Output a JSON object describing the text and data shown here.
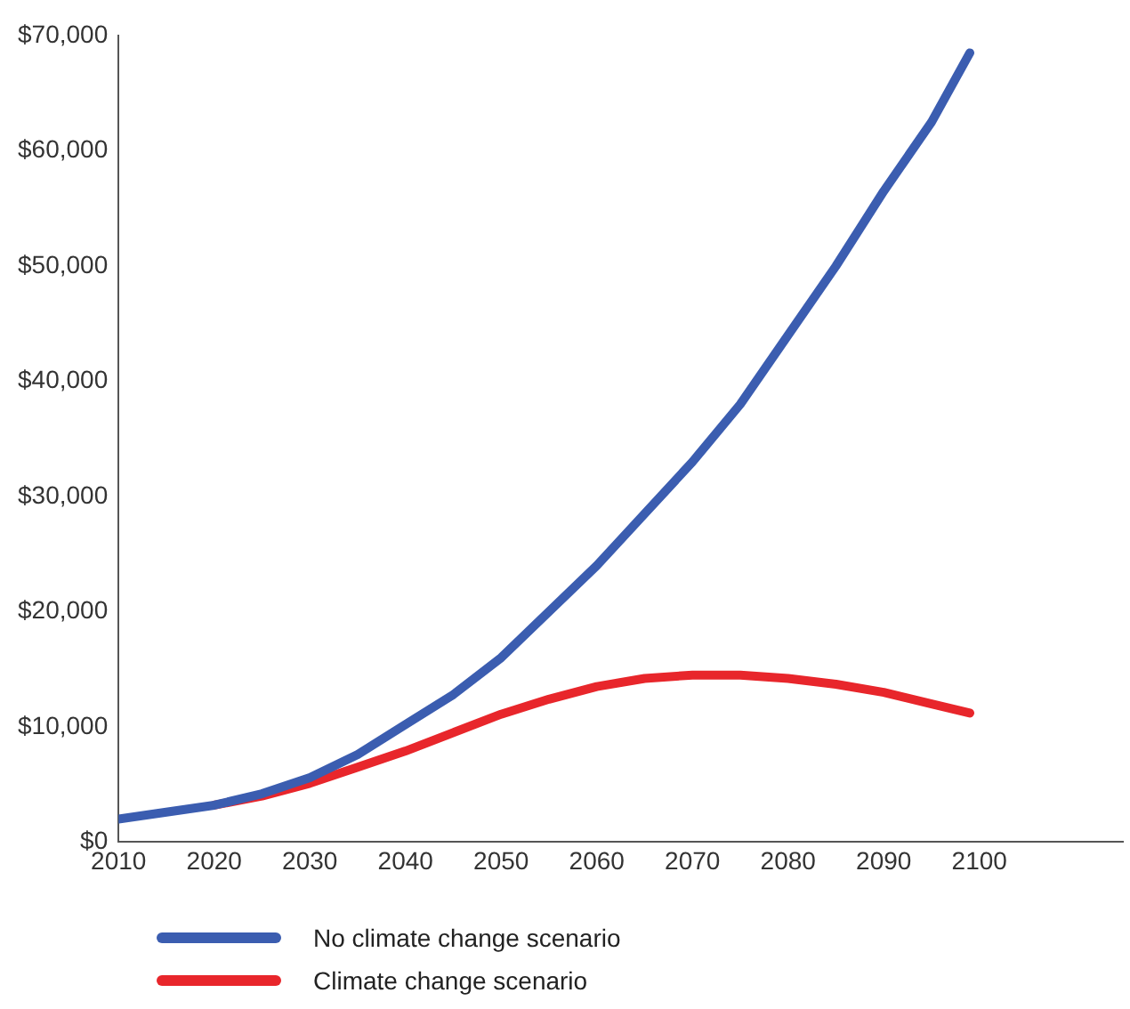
{
  "chart_data": {
    "type": "line",
    "xlim": [
      2010,
      2115
    ],
    "xticks": [
      2010,
      2020,
      2030,
      2040,
      2050,
      2060,
      2070,
      2080,
      2090,
      2100
    ],
    "ylim": [
      0,
      70000
    ],
    "yticks": [
      {
        "value": 0,
        "label": "$0"
      },
      {
        "value": 10000,
        "label": "$10,000"
      },
      {
        "value": 20000,
        "label": "$20,000"
      },
      {
        "value": 30000,
        "label": "$30,000"
      },
      {
        "value": 40000,
        "label": "$40,000"
      },
      {
        "value": 50000,
        "label": "$50,000"
      },
      {
        "value": 60000,
        "label": "$60,000"
      },
      {
        "value": 70000,
        "label": "$70,000"
      }
    ],
    "grid": false,
    "legend": "bottom",
    "marker": "none",
    "line_style": "solid",
    "series": [
      {
        "name": "No climate change scenario",
        "color": "#3b5db0",
        "x": [
          2010,
          2015,
          2020,
          2025,
          2030,
          2035,
          2040,
          2045,
          2050,
          2055,
          2060,
          2065,
          2070,
          2075,
          2080,
          2085,
          2090,
          2095,
          2099
        ],
        "values": [
          2000,
          2600,
          3200,
          4200,
          5600,
          7600,
          10200,
          12800,
          16000,
          20000,
          24000,
          28500,
          33000,
          38000,
          44000,
          50000,
          56500,
          62500,
          68500
        ]
      },
      {
        "name": "Climate change scenario",
        "color": "#e8262b",
        "x": [
          2020,
          2025,
          2030,
          2035,
          2040,
          2045,
          2050,
          2055,
          2060,
          2065,
          2070,
          2075,
          2080,
          2085,
          2090,
          2095,
          2099
        ],
        "values": [
          3200,
          4000,
          5100,
          6500,
          7900,
          9500,
          11100,
          12400,
          13500,
          14200,
          14500,
          14500,
          14200,
          13700,
          13000,
          12000,
          11200
        ]
      }
    ]
  }
}
